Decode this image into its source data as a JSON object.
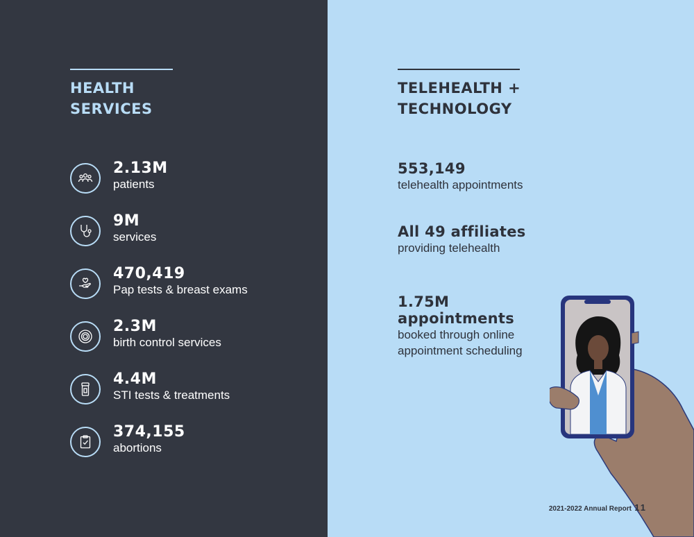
{
  "health_services": {
    "title_line1": "HEALTH",
    "title_line2": "SERVICES",
    "stats": [
      {
        "value": "2.13M",
        "label": "patients",
        "icon": "people-group-icon"
      },
      {
        "value": "9M",
        "label": "services",
        "icon": "stethoscope-icon"
      },
      {
        "value": "470,419",
        "label": "Pap tests & breast exams",
        "icon": "hand-heart-icon"
      },
      {
        "value": "2.3M",
        "label": "birth control services",
        "icon": "pill-pack-icon"
      },
      {
        "value": "4.4M",
        "label": "STI tests & treatments",
        "icon": "medicine-bottle-icon"
      },
      {
        "value": "374,155",
        "label": "abortions",
        "icon": "clipboard-check-icon"
      }
    ]
  },
  "telehealth": {
    "title_line1": "TELEHEALTH +",
    "title_line2": "TECHNOLOGY",
    "stats": [
      {
        "value": "553,149",
        "label": "telehealth appointments"
      },
      {
        "value": "All 49 affiliates",
        "label": "providing telehealth"
      },
      {
        "value_line1": "1.75M",
        "value_line2": "appointments",
        "label_line1": "booked through online",
        "label_line2": "appointment scheduling"
      }
    ]
  },
  "footer": {
    "report": "2021-2022 Annual Report",
    "page": "11"
  },
  "colors": {
    "dark_panel": "#333741",
    "light_panel": "#b8dcf6",
    "accent": "#b8dcf6",
    "text_dark": "#2e323b"
  }
}
